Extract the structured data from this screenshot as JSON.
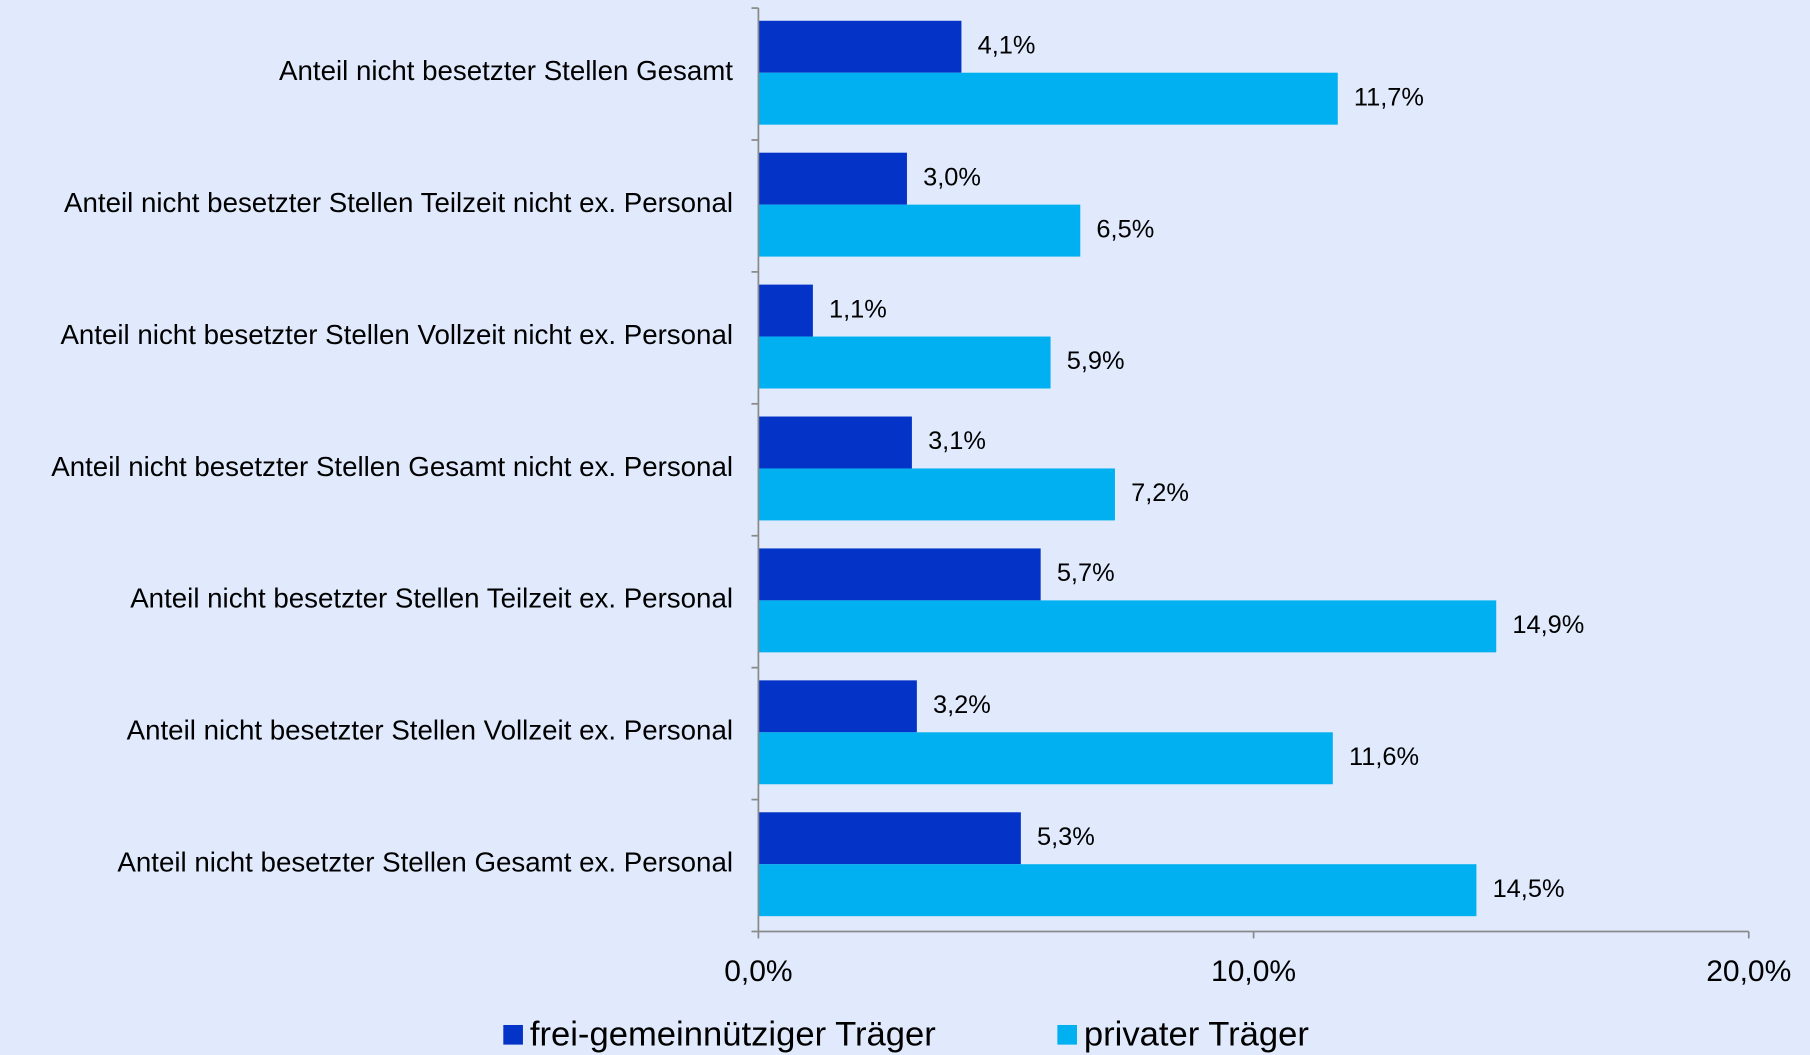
{
  "chart_data": {
    "type": "bar",
    "orientation": "horizontal",
    "categories": [
      "Anteil nicht besetzter Stellen Gesamt",
      "Anteil nicht besetzter Stellen Teilzeit nicht ex. Personal",
      "Anteil nicht besetzter Stellen Vollzeit nicht ex. Personal",
      "Anteil nicht besetzter Stellen Gesamt nicht ex. Personal",
      "Anteil nicht besetzter Stellen Teilzeit ex. Personal",
      "Anteil nicht besetzter Stellen Vollzeit ex. Personal",
      "Anteil nicht besetzter Stellen Gesamt ex. Personal"
    ],
    "series": [
      {
        "name": "frei-gemeinnütziger Träger",
        "color": "#0433c8",
        "values": [
          4.1,
          3.0,
          1.1,
          3.1,
          5.7,
          3.2,
          5.3
        ],
        "value_labels": [
          "4,1%",
          "3,0%",
          "1,1%",
          "3,1%",
          "5,7%",
          "3,2%",
          "5,3%"
        ]
      },
      {
        "name": "privater Träger",
        "color": "#00b0f0",
        "values": [
          11.7,
          6.5,
          5.9,
          7.2,
          14.9,
          11.6,
          14.5
        ],
        "value_labels": [
          "11,7%",
          "6,5%",
          "5,9%",
          "7,2%",
          "14,9%",
          "11,6%",
          "14,5%"
        ]
      }
    ],
    "xlim": [
      0,
      20
    ],
    "xticks": [
      {
        "value": 0,
        "label": "0,0%"
      },
      {
        "value": 10,
        "label": "10,0%"
      },
      {
        "value": 20,
        "label": "20,0%"
      }
    ],
    "legend": "bottom"
  }
}
